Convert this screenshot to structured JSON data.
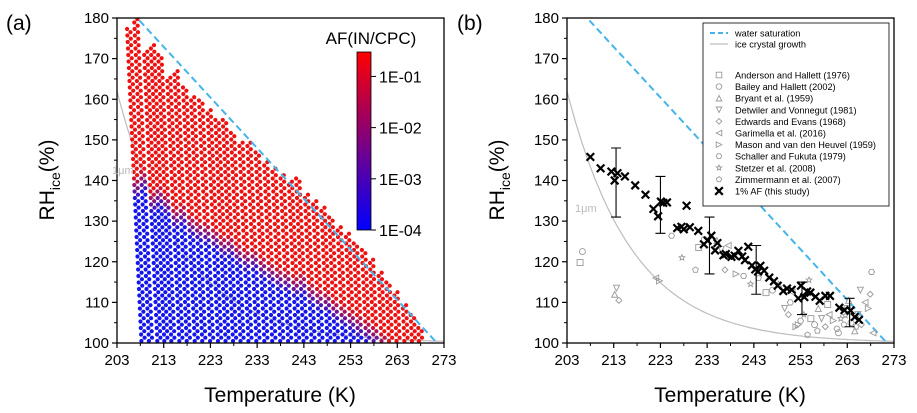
{
  "colors": {
    "water_saturation": "#44b4ea",
    "ice_growth": "#bdbdbd",
    "af_high": "#ee1111",
    "af_low": "#1515ee",
    "lit_marker": "#9a9a9a",
    "this_study": "#000000"
  },
  "chart_data": [
    {
      "type": "scatter",
      "panel_label": "(a)",
      "xlabel": "Temperature (K)",
      "ylabel": "RH",
      "ylabel_sub": "ice",
      "ylabel_suffix": "(%)",
      "xlim": [
        203,
        273
      ],
      "ylim": [
        100,
        180
      ],
      "xticks": [
        "203",
        "213",
        "223",
        "233",
        "243",
        "253",
        "263",
        "273"
      ],
      "yticks": [
        "100",
        "110",
        "120",
        "130",
        "140",
        "150",
        "160",
        "170",
        "180"
      ],
      "colorbar": {
        "title": "AF(IN/CPC)",
        "scale": "log",
        "range": [
          0.0001,
          0.3
        ],
        "ticks": [
          "1E-01",
          "1E-02",
          "1E-03",
          "1E-04"
        ],
        "colors": [
          "#0000ff",
          "#ff0000"
        ]
      },
      "annotation": "1μm",
      "series": [
        {
          "kind": "ramp_scans",
          "description_free": true,
          "scans": [
            {
              "T": 208.6,
              "top": 177.5
            },
            {
              "T": 210.2,
              "top": 180.0
            },
            {
              "T": 212.0,
              "top": 172.0
            },
            {
              "T": 213.5,
              "top": 174.0
            },
            {
              "T": 215.0,
              "top": 171.0
            },
            {
              "T": 216.7,
              "top": 166.0
            },
            {
              "T": 218.3,
              "top": 167.0
            },
            {
              "T": 220.0,
              "top": 163.0
            },
            {
              "T": 221.6,
              "top": 161.0
            },
            {
              "T": 223.3,
              "top": 160.0
            },
            {
              "T": 225.0,
              "top": 158.0
            },
            {
              "T": 226.6,
              "top": 155.0
            },
            {
              "T": 228.2,
              "top": 155.0
            },
            {
              "T": 229.8,
              "top": 152.0
            },
            {
              "T": 231.5,
              "top": 150.0
            },
            {
              "T": 233.2,
              "top": 150.0
            },
            {
              "T": 234.9,
              "top": 147.0
            },
            {
              "T": 236.6,
              "top": 145.0
            },
            {
              "T": 238.3,
              "top": 143.0
            },
            {
              "T": 240.0,
              "top": 142.0
            },
            {
              "T": 241.7,
              "top": 140.0
            },
            {
              "T": 243.3,
              "top": 141.0
            },
            {
              "T": 245.0,
              "top": 137.0
            },
            {
              "T": 246.7,
              "top": 135.0
            },
            {
              "T": 248.4,
              "top": 134.0
            },
            {
              "T": 250.0,
              "top": 131.0
            },
            {
              "T": 251.7,
              "top": 129.0
            },
            {
              "T": 253.4,
              "top": 127.0
            },
            {
              "T": 255.0,
              "top": 125.0
            },
            {
              "T": 256.7,
              "top": 123.0
            },
            {
              "T": 258.3,
              "top": 121.0
            },
            {
              "T": 260.0,
              "top": 118.0
            },
            {
              "T": 261.6,
              "top": 115.0
            },
            {
              "T": 263.2,
              "top": 113.0
            },
            {
              "T": 264.9,
              "top": 110.0
            },
            {
              "T": 266.5,
              "top": 107.0
            },
            {
              "T": 268.0,
              "top": 104.0
            }
          ],
          "threshold_rh_offset": 12
        }
      ]
    },
    {
      "type": "scatter",
      "panel_label": "(b)",
      "xlabel": "Temperature (K)",
      "ylabel": "RH",
      "ylabel_sub": "ice",
      "ylabel_suffix": "(%)",
      "xlim": [
        203,
        273
      ],
      "ylim": [
        100,
        180
      ],
      "xticks": [
        "203",
        "213",
        "223",
        "233",
        "243",
        "253",
        "263",
        "273"
      ],
      "yticks": [
        "100",
        "110",
        "120",
        "130",
        "140",
        "150",
        "160",
        "170",
        "180"
      ],
      "annotation": "1μm",
      "legend": [
        {
          "label": "water saturation",
          "style": "dash"
        },
        {
          "label": "ice crystal growth",
          "style": "line"
        },
        {
          "label": "Anderson and Hallett (1976)",
          "marker": "square"
        },
        {
          "label": "Bailey and Hallett (2002)",
          "marker": "circle"
        },
        {
          "label": "Bryant et al. (1959)",
          "marker": "triangle-up"
        },
        {
          "label": "Detwiler and Vonnegut (1981)",
          "marker": "triangle-down"
        },
        {
          "label": "Edwards and Evans (1968)",
          "marker": "diamond"
        },
        {
          "label": "Garimella et al. (2016)",
          "marker": "triangle-left"
        },
        {
          "label": "Mason and van den Heuvel (1959)",
          "marker": "triangle-right"
        },
        {
          "label": "Schaller and Fukuta (1979)",
          "marker": "hexagon"
        },
        {
          "label": "Stetzer et al. (2008)",
          "marker": "star"
        },
        {
          "label": "Zimmermann et al. (2007)",
          "marker": "pentagon"
        },
        {
          "label": "1% AF (this study)",
          "marker": "x"
        }
      ],
      "this_study": {
        "x": [
          208.0,
          210.2,
          212.5,
          213.2,
          213.8,
          215.4,
          217.6,
          219.8,
          221.5,
          222.5,
          223.1,
          223.6,
          224.4,
          226.6,
          227.5,
          228.0,
          228.6,
          229.3,
          231.1,
          232.3,
          233.1,
          233.9,
          234.7,
          235.2,
          236.5,
          237.0,
          238.2,
          238.9,
          239.7,
          240.5,
          241.1,
          241.8,
          242.6,
          243.3,
          243.9,
          244.4,
          245.2,
          246.3,
          247.3,
          248.1,
          249.3,
          250.1,
          251.1,
          252.5,
          253.1,
          253.8,
          254.4,
          255.1,
          256.2,
          257.1,
          258.3,
          259.3,
          261.3,
          262.4,
          263.7,
          264.6,
          265.5
        ],
        "y": [
          145.8,
          143.0,
          142.2,
          140.0,
          141.8,
          141.0,
          138.8,
          136.5,
          133.0,
          131.2,
          134.8,
          134.5,
          134.6,
          128.3,
          128.6,
          128.0,
          133.8,
          128.5,
          127.6,
          124.3,
          125.2,
          126.4,
          122.8,
          124.6,
          121.6,
          121.9,
          121.2,
          121.5,
          122.7,
          121.3,
          120.4,
          123.7,
          119.1,
          118.1,
          117.6,
          119.0,
          117.8,
          116.1,
          115.2,
          114.1,
          112.8,
          113.4,
          113.1,
          111.0,
          114.1,
          111.3,
          112.7,
          112.4,
          111.4,
          110.4,
          111.6,
          111.6,
          108.7,
          108.1,
          108.0,
          106.4,
          105.7
        ],
        "error_bars": [
          {
            "x": 213.5,
            "y": 139.5,
            "lo": 131.0,
            "hi": 148.0
          },
          {
            "x": 223.0,
            "y": 134.0,
            "lo": 127.0,
            "hi": 141.0
          },
          {
            "x": 233.5,
            "y": 124.0,
            "lo": 117.0,
            "hi": 131.0
          },
          {
            "x": 243.5,
            "y": 118.0,
            "lo": 112.0,
            "hi": 124.0
          },
          {
            "x": 253.3,
            "y": 111.0,
            "lo": 107.0,
            "hi": 115.0
          },
          {
            "x": 263.5,
            "y": 107.5,
            "lo": 104.0,
            "hi": 111.0
          }
        ]
      },
      "literature_points": {
        "x": [
          205.8,
          206.3,
          213.2,
          213.6,
          214.1,
          222.0,
          222.8,
          225.4,
          227.6,
          230.5,
          231.2,
          232.4,
          235.1,
          236.0,
          236.8,
          237.5,
          239.2,
          240.8,
          242.3,
          244.0,
          245.6,
          247.0,
          248.3,
          249.6,
          250.4,
          251.2,
          252.0,
          253.0,
          253.7,
          254.5,
          255.2,
          256.0,
          256.8,
          257.5,
          258.3,
          259.1,
          260.0,
          260.8,
          261.6,
          262.3,
          263.0,
          263.8,
          264.6,
          265.3,
          266.0,
          266.8,
          267.5,
          268.2,
          254.8,
          256.6,
          258.8,
          261.1,
          263.3,
          265.8,
          267.9,
          268.5,
          252.5,
          250.8,
          262.6,
          264.9
        ],
        "y": [
          119.8,
          122.5,
          112.0,
          113.5,
          110.5,
          116.0,
          115.3,
          126.4,
          121.0,
          118.0,
          123.5,
          125.5,
          125.2,
          123.0,
          118.0,
          124.0,
          117.0,
          116.5,
          114.5,
          116.0,
          112.4,
          113.0,
          114.5,
          108.5,
          107.0,
          112.5,
          104.0,
          105.5,
          107.0,
          102.0,
          106.0,
          104.5,
          108.5,
          106.0,
          104.0,
          107.0,
          105.5,
          103.5,
          106.0,
          104.5,
          108.5,
          105.0,
          103.0,
          107.0,
          104.5,
          110.0,
          108.5,
          117.5,
          115.5,
          103.0,
          109.5,
          102.5,
          110.5,
          113.0,
          112.0,
          102.5,
          104.5,
          110.0,
          106.8,
          104.0
        ]
      }
    }
  ]
}
